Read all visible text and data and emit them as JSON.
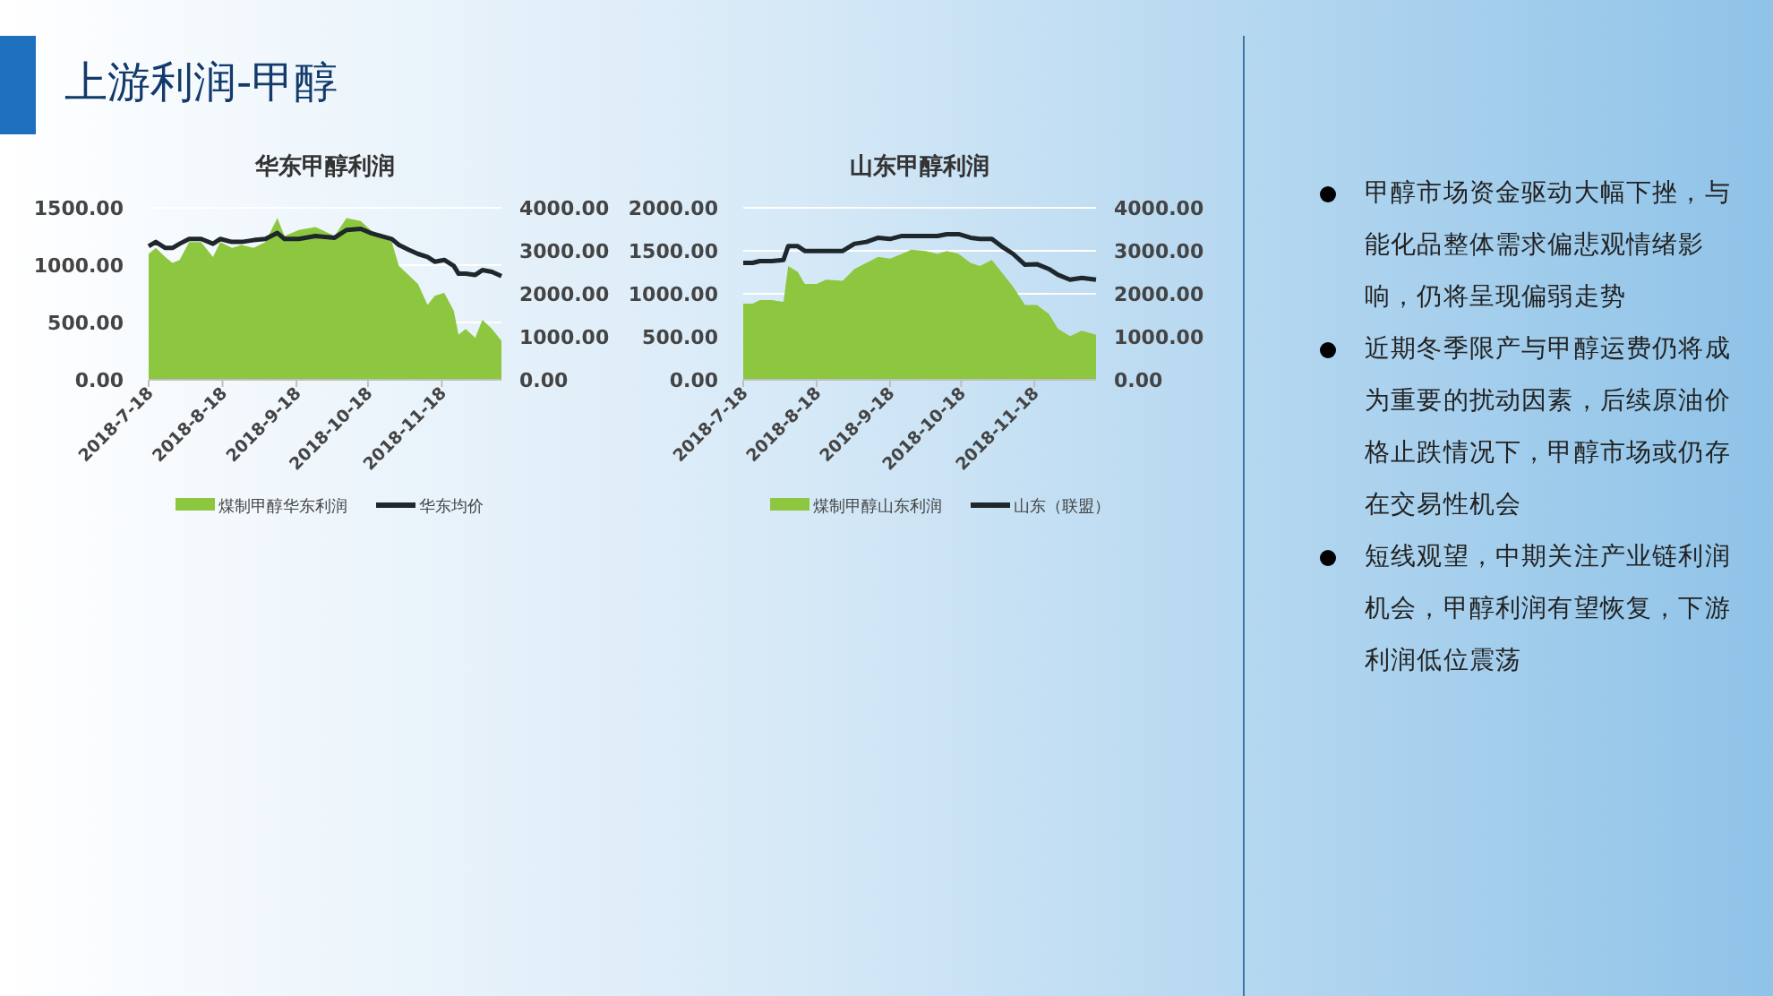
{
  "chart_data": [
    {
      "type": "area",
      "title": "华东甲醇利润",
      "legend": "bottom",
      "grid": "y",
      "xlim": [
        "2018-07-18",
        "2018-12-13"
      ],
      "xticks": [
        {
          "value": "2018-07-18",
          "label": "2018-7-18"
        },
        {
          "value": "2018-08-18",
          "label": "2018-8-18"
        },
        {
          "value": "2018-09-18",
          "label": "2018-9-18"
        },
        {
          "value": "2018-10-18",
          "label": "2018-10-18"
        },
        {
          "value": "2018-11-18",
          "label": "2018-11-18"
        }
      ],
      "ylim": [
        0,
        1500
      ],
      "yticks": [
        {
          "value": 0,
          "label": "0.00"
        },
        {
          "value": 500,
          "label": "500.00"
        },
        {
          "value": 1000,
          "label": "1000.00"
        },
        {
          "value": 1500,
          "label": "1500.00"
        }
      ],
      "y2lim": [
        0,
        4000
      ],
      "y2ticks": [
        {
          "value": 0,
          "label": "0.00"
        },
        {
          "value": 1000,
          "label": "1000.00"
        },
        {
          "value": 2000,
          "label": "2000.00"
        },
        {
          "value": 3000,
          "label": "3000.00"
        },
        {
          "value": 4000,
          "label": "4000.00"
        }
      ],
      "x": [
        "2018-07-18",
        "2018-07-21",
        "2018-07-25",
        "2018-07-28",
        "2018-07-31",
        "2018-08-04",
        "2018-08-09",
        "2018-08-14",
        "2018-08-17",
        "2018-08-22",
        "2018-08-26",
        "2018-08-31",
        "2018-09-05",
        "2018-09-10",
        "2018-09-13",
        "2018-09-19",
        "2018-09-26",
        "2018-10-04",
        "2018-10-09",
        "2018-10-15",
        "2018-10-19",
        "2018-10-28",
        "2018-10-31",
        "2018-11-04",
        "2018-11-08",
        "2018-11-12",
        "2018-11-15",
        "2018-11-19",
        "2018-11-23",
        "2018-11-25",
        "2018-11-28",
        "2018-12-02",
        "2018-12-05",
        "2018-12-09",
        "2018-12-13"
      ],
      "series": [
        {
          "name": "煤制甲醇华东利润",
          "type": "area",
          "color": "#8dc63f",
          "values": [
            1097,
            1150,
            1071,
            1019,
            1045,
            1202,
            1202,
            1071,
            1202,
            1150,
            1176,
            1150,
            1202,
            1411,
            1254,
            1307,
            1333,
            1254,
            1411,
            1385,
            1307,
            1202,
            993,
            915,
            836,
            653,
            732,
            758,
            601,
            392,
            444,
            366,
            523,
            444,
            340
          ]
        },
        {
          "name": "华东均价",
          "type": "line",
          "axis": "y2",
          "color": "#1e272c",
          "values": [
            3108,
            3206,
            3066,
            3066,
            3164,
            3275,
            3275,
            3164,
            3275,
            3206,
            3206,
            3248,
            3275,
            3415,
            3275,
            3275,
            3345,
            3303,
            3485,
            3512,
            3415,
            3275,
            3136,
            3025,
            2927,
            2857,
            2746,
            2788,
            2649,
            2467,
            2467,
            2439,
            2551,
            2509,
            2411
          ]
        }
      ]
    },
    {
      "type": "area",
      "title": "山东甲醇利润",
      "legend": "bottom",
      "grid": "y",
      "xlim": [
        "2018-07-18",
        "2018-12-14"
      ],
      "xticks": [
        {
          "value": "2018-07-18",
          "label": "2018-7-18"
        },
        {
          "value": "2018-08-18",
          "label": "2018-8-18"
        },
        {
          "value": "2018-09-18",
          "label": "2018-9-18"
        },
        {
          "value": "2018-10-18",
          "label": "2018-10-18"
        },
        {
          "value": "2018-11-18",
          "label": "2018-11-18"
        }
      ],
      "ylim": [
        0,
        2000
      ],
      "yticks": [
        {
          "value": 0,
          "label": "0.00"
        },
        {
          "value": 500,
          "label": "500.00"
        },
        {
          "value": 1000,
          "label": "1000.00"
        },
        {
          "value": 1500,
          "label": "1500.00"
        },
        {
          "value": 2000,
          "label": "2000.00"
        }
      ],
      "y2lim": [
        0,
        4000
      ],
      "y2ticks": [
        {
          "value": 0,
          "label": "0.00"
        },
        {
          "value": 1000,
          "label": "1000.00"
        },
        {
          "value": 2000,
          "label": "2000.00"
        },
        {
          "value": 3000,
          "label": "3000.00"
        },
        {
          "value": 4000,
          "label": "4000.00"
        }
      ],
      "x": [
        "2018-07-18",
        "2018-07-22",
        "2018-07-25",
        "2018-07-30",
        "2018-08-04",
        "2018-08-06",
        "2018-08-10",
        "2018-08-13",
        "2018-08-18",
        "2018-08-22",
        "2018-08-29",
        "2018-09-03",
        "2018-09-08",
        "2018-09-13",
        "2018-09-18",
        "2018-09-23",
        "2018-09-27",
        "2018-10-03",
        "2018-10-08",
        "2018-10-12",
        "2018-10-17",
        "2018-10-22",
        "2018-10-26",
        "2018-10-31",
        "2018-11-04",
        "2018-11-09",
        "2018-11-14",
        "2018-11-19",
        "2018-11-24",
        "2018-11-28",
        "2018-12-03",
        "2018-12-08",
        "2018-12-14"
      ],
      "series": [
        {
          "name": "煤制甲醇山东利润",
          "type": "area",
          "color": "#8dc63f",
          "values": [
            885,
            885,
            927,
            927,
            906,
            1324,
            1254,
            1115,
            1115,
            1164,
            1150,
            1289,
            1359,
            1429,
            1408,
            1463,
            1512,
            1498,
            1463,
            1498,
            1463,
            1359,
            1324,
            1394,
            1254,
            1080,
            871,
            871,
            767,
            592,
            509,
            571,
            523
          ]
        },
        {
          "name": "山东（联盟）",
          "type": "line",
          "axis": "y2",
          "color": "#1e272c",
          "values": [
            2718,
            2718,
            2760,
            2760,
            2788,
            3108,
            3108,
            2997,
            2997,
            2997,
            2997,
            3164,
            3206,
            3303,
            3275,
            3345,
            3345,
            3345,
            3345,
            3387,
            3387,
            3303,
            3275,
            3275,
            3108,
            2927,
            2676,
            2690,
            2579,
            2439,
            2328,
            2370,
            2328
          ]
        }
      ]
    },
    {
      "type": "other",
      "title": "上游利润-甲醇",
      "annotations": [
        "甲醇市场资金驱动大幅下挫，与能化品整体需求偏悲观情绪影响，仍将呈现偏弱走势",
        "近期冬季限产与甲醇运费仍将成为重要的扰动因素，后续原油价格止跌情况下，甲醇市场或仍存在交易性机会",
        "短线观望，中期关注产业链利润机会，甲醇利润有望恢复，下游利润低位震荡"
      ]
    }
  ]
}
